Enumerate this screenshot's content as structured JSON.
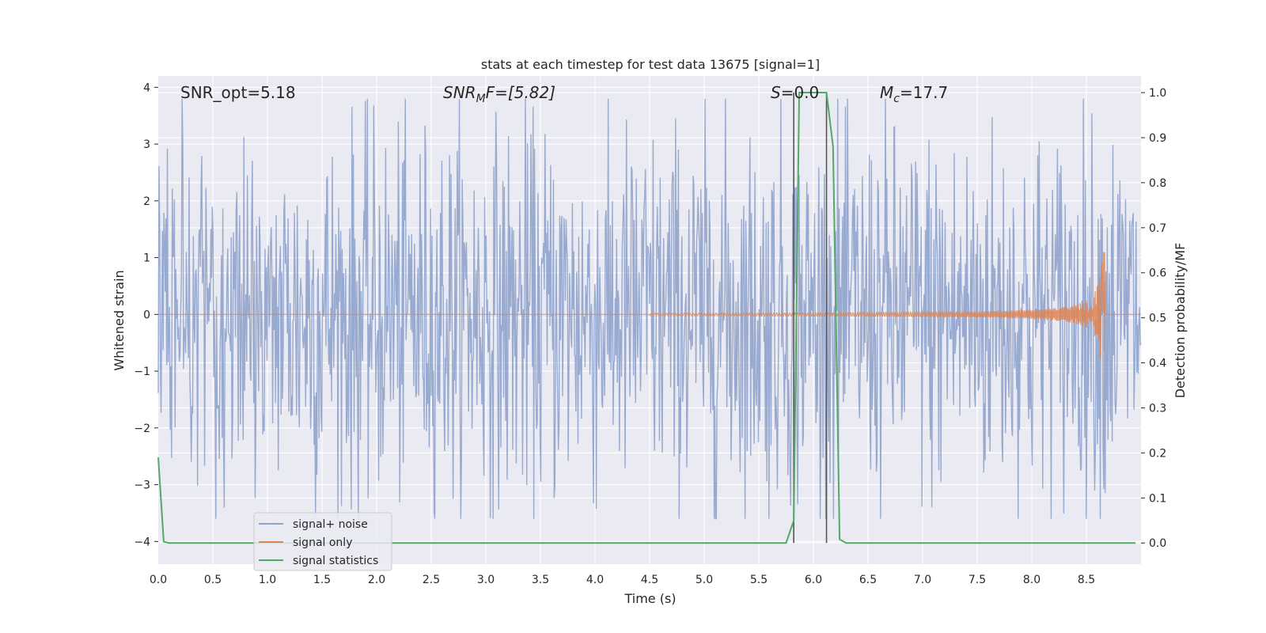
{
  "chart_data": {
    "type": "line",
    "title": "stats at each timestep for test data 13675 [signal=1]",
    "xlabel": "Time (s)",
    "ylabel_left": "Whitened strain",
    "ylabel_right": "Detection probability/MF",
    "xlim": [
      0.0,
      9.0
    ],
    "ylim_left": [
      -4.4,
      4.2
    ],
    "ylim_right": [
      -0.047,
      1.037
    ],
    "x_ticks": [
      "0.0",
      "0.5",
      "1.0",
      "1.5",
      "2.0",
      "2.5",
      "3.0",
      "3.5",
      "4.0",
      "4.5",
      "5.0",
      "5.5",
      "6.0",
      "6.5",
      "7.0",
      "7.5",
      "8.0",
      "8.5"
    ],
    "y_ticks_left": [
      "4",
      "3",
      "2",
      "1",
      "0",
      "−1",
      "−2",
      "−3",
      "−4"
    ],
    "y_ticks_right": [
      "1.0",
      "0.9",
      "0.8",
      "0.7",
      "0.6",
      "0.5",
      "0.4",
      "0.3",
      "0.2",
      "0.1",
      "0.0"
    ],
    "grid": true,
    "legend_position": "lower-left",
    "annotations": {
      "snr_opt": "SNR_opt=5.18",
      "snr_mf_base": "SNR",
      "snr_mf_sub": "M",
      "snr_mf_tail": "F=[5.82]",
      "s_var": "S",
      "s_value": "=0.0",
      "mc_var": "M",
      "mc_sub": "c",
      "mc_value": "=17.7"
    },
    "markers_x": [
      5.82,
      6.12
    ],
    "series": [
      {
        "name": "signal+ noise",
        "color": "#8fa3cc",
        "axis": "left",
        "description_range": "noise amplitude approx within [-3.6, 3.8]",
        "n_samples": 1400,
        "amplitude": 1.55
      },
      {
        "name": "signal only",
        "color": "#dd8452",
        "axis": "left",
        "chirp_start": 4.5,
        "chirp_peak_time": 8.65,
        "chirp_peak_amplitude": 1.1
      },
      {
        "name": "signal statistics",
        "color": "#55a868",
        "axis": "right",
        "x": [
          0.0,
          0.05,
          0.1,
          0.15,
          5.75,
          5.82,
          5.87,
          6.12,
          6.18,
          6.24,
          6.3,
          8.95
        ],
        "y": [
          0.19,
          0.003,
          0.0,
          0.0,
          0.0,
          0.05,
          1.0,
          1.0,
          0.88,
          0.008,
          0.0,
          0.0
        ]
      }
    ]
  },
  "colors": {
    "plot_bg": "#eaeaf2",
    "grid": "#ffffff",
    "marker_line": "#555555"
  }
}
